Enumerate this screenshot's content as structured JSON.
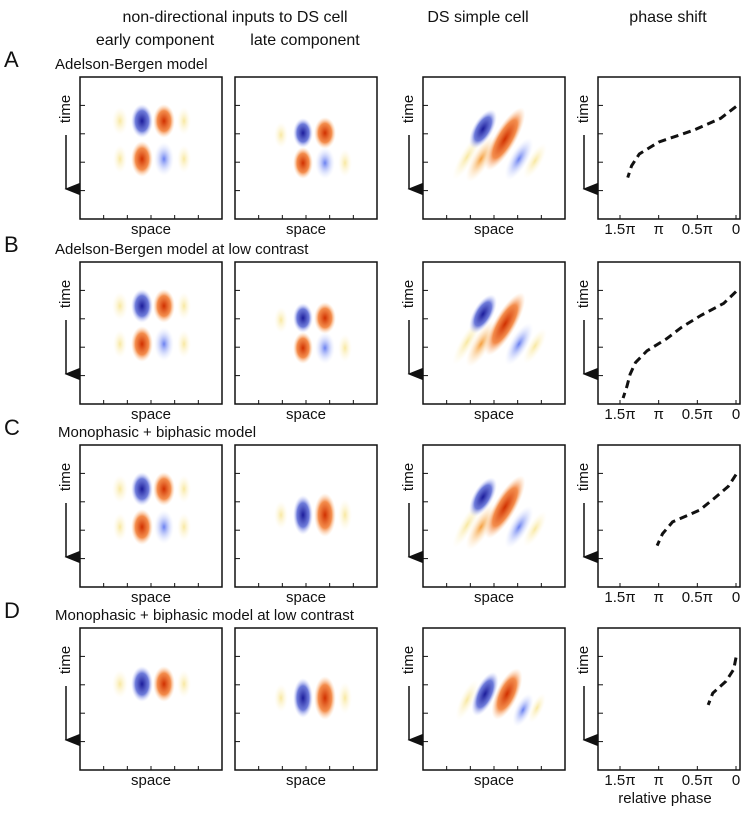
{
  "headers": {
    "inputs": "non-directional inputs to DS cell",
    "ds": "DS simple cell",
    "phase": "phase shift",
    "early": "early component",
    "late": "late component"
  },
  "axis_labels": {
    "space": "space",
    "time": "time",
    "phase": "relative phase"
  },
  "phase_ticks": [
    {
      "value": 1.5,
      "label": "1.5π"
    },
    {
      "value": 1,
      "label": "π"
    },
    {
      "value": 0.5,
      "label": "0.5π"
    },
    {
      "value": 0,
      "label": "0"
    }
  ],
  "rows": [
    {
      "letter": "A",
      "title": "Adelson-Bergen model",
      "phase": [
        null,
        null,
        0.0,
        0.2,
        0.55,
        1.0,
        1.25,
        1.35,
        1.4,
        null,
        null,
        null
      ]
    },
    {
      "letter": "B",
      "title": "Adelson-Bergen model at low contrast",
      "phase": [
        null,
        null,
        0.0,
        0.16,
        0.45,
        0.7,
        0.9,
        1.15,
        1.3,
        1.37,
        1.41,
        1.46
      ]
    },
    {
      "letter": "C",
      "title": "Monophasic + biphasic model",
      "phase": [
        null,
        null,
        0.0,
        0.1,
        0.28,
        0.47,
        0.82,
        0.95,
        1.02,
        null,
        null,
        null
      ]
    },
    {
      "letter": "D",
      "title": "Monophasic + biphasic model at low contrast",
      "phase": [
        null,
        null,
        0.0,
        0.03,
        0.13,
        0.3,
        0.36,
        null,
        null,
        null,
        null,
        null
      ]
    }
  ]
}
